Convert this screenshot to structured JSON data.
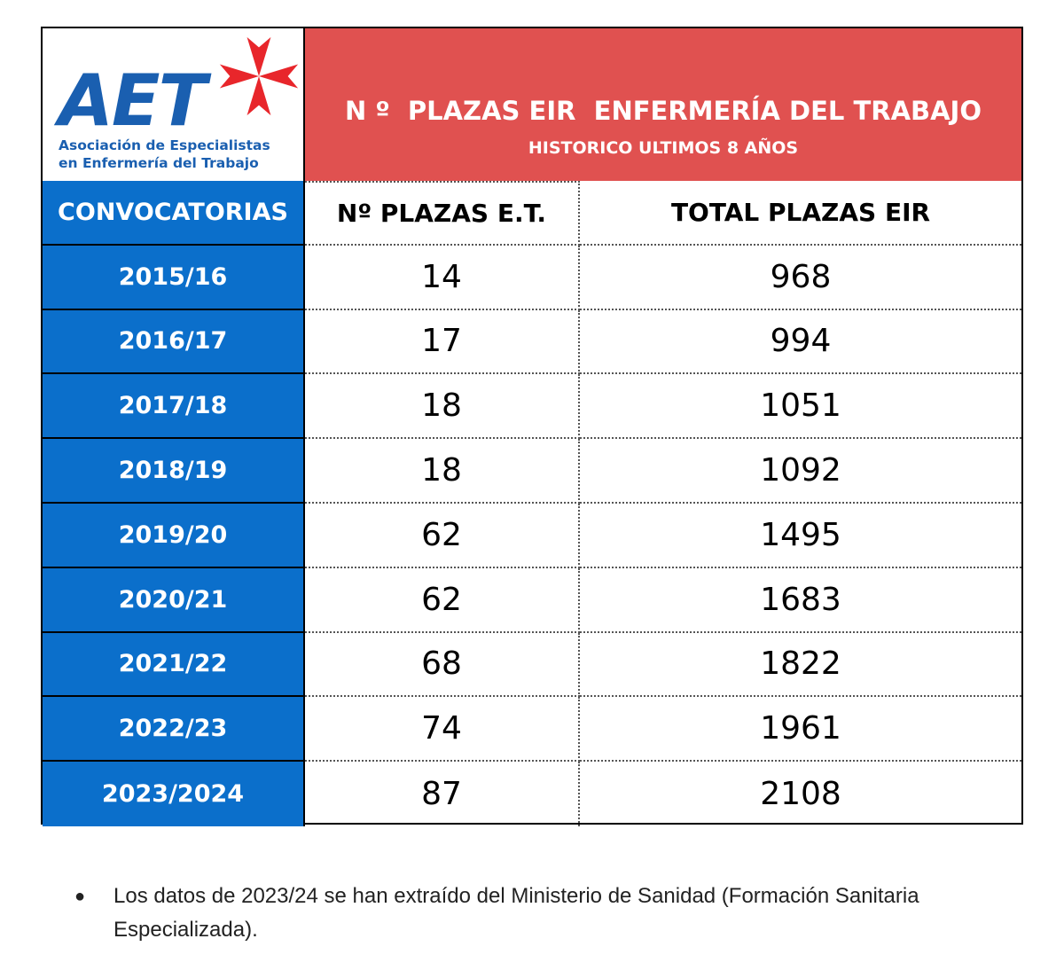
{
  "logo": {
    "acronym": "AET",
    "name_line1": "Asociación de Especialistas",
    "name_line2": "en Enfermería del Trabajo"
  },
  "header": {
    "title": "N º  PLAZAS EIR  ENFERMERÍA DEL TRABAJO",
    "subtitle": "HISTORICO ULTIMOS 8 AÑOS"
  },
  "table": {
    "columns": [
      "CONVOCATORIAS",
      "Nº PLAZAS E.T.",
      "TOTAL PLAZAS EIR"
    ],
    "rows": [
      [
        "2015/16",
        "14",
        "968"
      ],
      [
        "2016/17",
        "17",
        "994"
      ],
      [
        "2017/18",
        "18",
        "1051"
      ],
      [
        "2018/19",
        "18",
        "1092"
      ],
      [
        "2019/20",
        "62",
        "1495"
      ],
      [
        "2020/21",
        "62",
        "1683"
      ],
      [
        "2021/22",
        "68",
        "1822"
      ],
      [
        "2022/23",
        "74",
        "1961"
      ],
      [
        "2023/2024",
        "87",
        "2108"
      ]
    ]
  },
  "footnote": {
    "bullet": "●",
    "text": "Los datos de 2023/24 se han extraído del Ministerio de Sanidad (Formación Sanitaria Especializada)."
  },
  "colors": {
    "header_red": "#e05150",
    "year_blue": "#0b6fcb",
    "logo_blue": "#1a5fb0",
    "cross_red": "#e8262b"
  }
}
